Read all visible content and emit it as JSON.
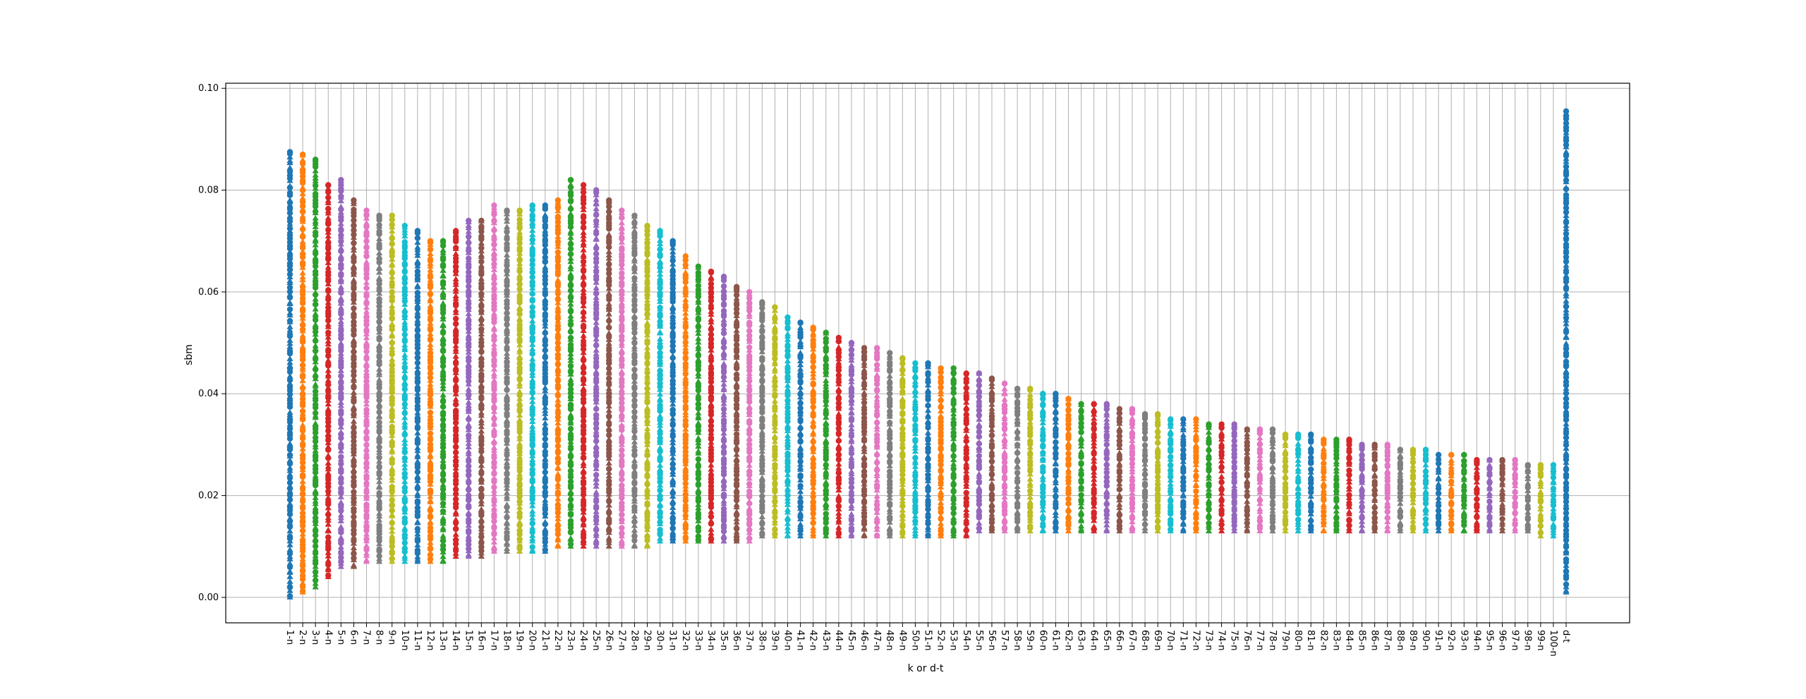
{
  "chart_data": {
    "type": "scatter",
    "title": "",
    "xlabel": "k or d-t",
    "ylabel": "sbm",
    "ylim": [
      -0.005,
      0.101
    ],
    "yticks": [
      0.0,
      0.02,
      0.04,
      0.06,
      0.08,
      0.1
    ],
    "ytick_labels": [
      "0.00",
      "0.02",
      "0.04",
      "0.06",
      "0.08",
      "0.10"
    ],
    "grid": true,
    "legend": "none",
    "markers": [
      "circle",
      "triangle"
    ],
    "palette": [
      "#1f77b4",
      "#ff7f0e",
      "#2ca02c",
      "#d62728",
      "#9467bd",
      "#8c564b",
      "#e377c2",
      "#7f7f7f",
      "#bcbd22",
      "#17becf"
    ],
    "categories": [
      "1-n",
      "2-n",
      "3-n",
      "4-n",
      "5-n",
      "6-n",
      "7-n",
      "8-n",
      "9-n",
      "10-n",
      "11-n",
      "12-n",
      "13-n",
      "14-n",
      "15-n",
      "16-n",
      "17-n",
      "18-n",
      "19-n",
      "20-n",
      "21-n",
      "22-n",
      "23-n",
      "24-n",
      "25-n",
      "26-n",
      "27-n",
      "28-n",
      "29-n",
      "30-n",
      "31-n",
      "32-n",
      "33-n",
      "34-n",
      "35-n",
      "36-n",
      "37-n",
      "38-n",
      "39-n",
      "40-n",
      "41-n",
      "42-n",
      "43-n",
      "44-n",
      "45-n",
      "46-n",
      "47-n",
      "48-n",
      "49-n",
      "50-n",
      "51-n",
      "52-n",
      "53-n",
      "54-n",
      "55-n",
      "56-n",
      "57-n",
      "58-n",
      "59-n",
      "60-n",
      "61-n",
      "62-n",
      "63-n",
      "64-n",
      "65-n",
      "66-n",
      "67-n",
      "68-n",
      "69-n",
      "70-n",
      "71-n",
      "72-n",
      "73-n",
      "74-n",
      "75-n",
      "76-n",
      "77-n",
      "78-n",
      "79-n",
      "80-n",
      "81-n",
      "82-n",
      "83-n",
      "84-n",
      "85-n",
      "86-n",
      "87-n",
      "88-n",
      "89-n",
      "90-n",
      "91-n",
      "92-n",
      "93-n",
      "94-n",
      "95-n",
      "96-n",
      "97-n",
      "98-n",
      "99-n",
      "100-n",
      "d-t"
    ],
    "ranges": [
      {
        "min": 0.0,
        "max": 0.0875
      },
      {
        "min": 0.001,
        "max": 0.087
      },
      {
        "min": 0.002,
        "max": 0.086
      },
      {
        "min": 0.004,
        "max": 0.081
      },
      {
        "min": 0.006,
        "max": 0.082
      },
      {
        "min": 0.006,
        "max": 0.078
      },
      {
        "min": 0.007,
        "max": 0.076
      },
      {
        "min": 0.007,
        "max": 0.075
      },
      {
        "min": 0.007,
        "max": 0.075
      },
      {
        "min": 0.007,
        "max": 0.073
      },
      {
        "min": 0.007,
        "max": 0.072
      },
      {
        "min": 0.007,
        "max": 0.07
      },
      {
        "min": 0.007,
        "max": 0.07
      },
      {
        "min": 0.008,
        "max": 0.072
      },
      {
        "min": 0.008,
        "max": 0.074
      },
      {
        "min": 0.008,
        "max": 0.074
      },
      {
        "min": 0.009,
        "max": 0.077
      },
      {
        "min": 0.009,
        "max": 0.076
      },
      {
        "min": 0.009,
        "max": 0.076
      },
      {
        "min": 0.009,
        "max": 0.077
      },
      {
        "min": 0.009,
        "max": 0.077
      },
      {
        "min": 0.01,
        "max": 0.078
      },
      {
        "min": 0.01,
        "max": 0.082
      },
      {
        "min": 0.01,
        "max": 0.081
      },
      {
        "min": 0.01,
        "max": 0.08
      },
      {
        "min": 0.01,
        "max": 0.078
      },
      {
        "min": 0.01,
        "max": 0.076
      },
      {
        "min": 0.01,
        "max": 0.075
      },
      {
        "min": 0.01,
        "max": 0.073
      },
      {
        "min": 0.011,
        "max": 0.072
      },
      {
        "min": 0.011,
        "max": 0.07
      },
      {
        "min": 0.011,
        "max": 0.067
      },
      {
        "min": 0.011,
        "max": 0.065
      },
      {
        "min": 0.011,
        "max": 0.064
      },
      {
        "min": 0.011,
        "max": 0.063
      },
      {
        "min": 0.011,
        "max": 0.061
      },
      {
        "min": 0.011,
        "max": 0.06
      },
      {
        "min": 0.012,
        "max": 0.058
      },
      {
        "min": 0.012,
        "max": 0.057
      },
      {
        "min": 0.012,
        "max": 0.055
      },
      {
        "min": 0.012,
        "max": 0.054
      },
      {
        "min": 0.012,
        "max": 0.053
      },
      {
        "min": 0.012,
        "max": 0.052
      },
      {
        "min": 0.012,
        "max": 0.051
      },
      {
        "min": 0.012,
        "max": 0.05
      },
      {
        "min": 0.012,
        "max": 0.049
      },
      {
        "min": 0.012,
        "max": 0.049
      },
      {
        "min": 0.012,
        "max": 0.048
      },
      {
        "min": 0.012,
        "max": 0.047
      },
      {
        "min": 0.012,
        "max": 0.046
      },
      {
        "min": 0.012,
        "max": 0.046
      },
      {
        "min": 0.012,
        "max": 0.045
      },
      {
        "min": 0.012,
        "max": 0.045
      },
      {
        "min": 0.012,
        "max": 0.044
      },
      {
        "min": 0.013,
        "max": 0.044
      },
      {
        "min": 0.013,
        "max": 0.043
      },
      {
        "min": 0.013,
        "max": 0.042
      },
      {
        "min": 0.013,
        "max": 0.041
      },
      {
        "min": 0.013,
        "max": 0.041
      },
      {
        "min": 0.013,
        "max": 0.04
      },
      {
        "min": 0.013,
        "max": 0.04
      },
      {
        "min": 0.013,
        "max": 0.039
      },
      {
        "min": 0.013,
        "max": 0.038
      },
      {
        "min": 0.013,
        "max": 0.038
      },
      {
        "min": 0.013,
        "max": 0.038
      },
      {
        "min": 0.013,
        "max": 0.037
      },
      {
        "min": 0.013,
        "max": 0.037
      },
      {
        "min": 0.013,
        "max": 0.036
      },
      {
        "min": 0.013,
        "max": 0.036
      },
      {
        "min": 0.013,
        "max": 0.035
      },
      {
        "min": 0.013,
        "max": 0.035
      },
      {
        "min": 0.013,
        "max": 0.035
      },
      {
        "min": 0.013,
        "max": 0.034
      },
      {
        "min": 0.013,
        "max": 0.034
      },
      {
        "min": 0.013,
        "max": 0.034
      },
      {
        "min": 0.013,
        "max": 0.033
      },
      {
        "min": 0.013,
        "max": 0.033
      },
      {
        "min": 0.013,
        "max": 0.033
      },
      {
        "min": 0.013,
        "max": 0.032
      },
      {
        "min": 0.013,
        "max": 0.032
      },
      {
        "min": 0.013,
        "max": 0.032
      },
      {
        "min": 0.013,
        "max": 0.031
      },
      {
        "min": 0.013,
        "max": 0.031
      },
      {
        "min": 0.013,
        "max": 0.031
      },
      {
        "min": 0.013,
        "max": 0.03
      },
      {
        "min": 0.013,
        "max": 0.03
      },
      {
        "min": 0.013,
        "max": 0.03
      },
      {
        "min": 0.013,
        "max": 0.029
      },
      {
        "min": 0.013,
        "max": 0.029
      },
      {
        "min": 0.013,
        "max": 0.029
      },
      {
        "min": 0.013,
        "max": 0.028
      },
      {
        "min": 0.013,
        "max": 0.028
      },
      {
        "min": 0.013,
        "max": 0.028
      },
      {
        "min": 0.013,
        "max": 0.027
      },
      {
        "min": 0.013,
        "max": 0.027
      },
      {
        "min": 0.013,
        "max": 0.027
      },
      {
        "min": 0.013,
        "max": 0.027
      },
      {
        "min": 0.013,
        "max": 0.026
      },
      {
        "min": 0.012,
        "max": 0.026
      },
      {
        "min": 0.012,
        "max": 0.026
      },
      {
        "min": 0.001,
        "max": 0.0955
      }
    ]
  }
}
